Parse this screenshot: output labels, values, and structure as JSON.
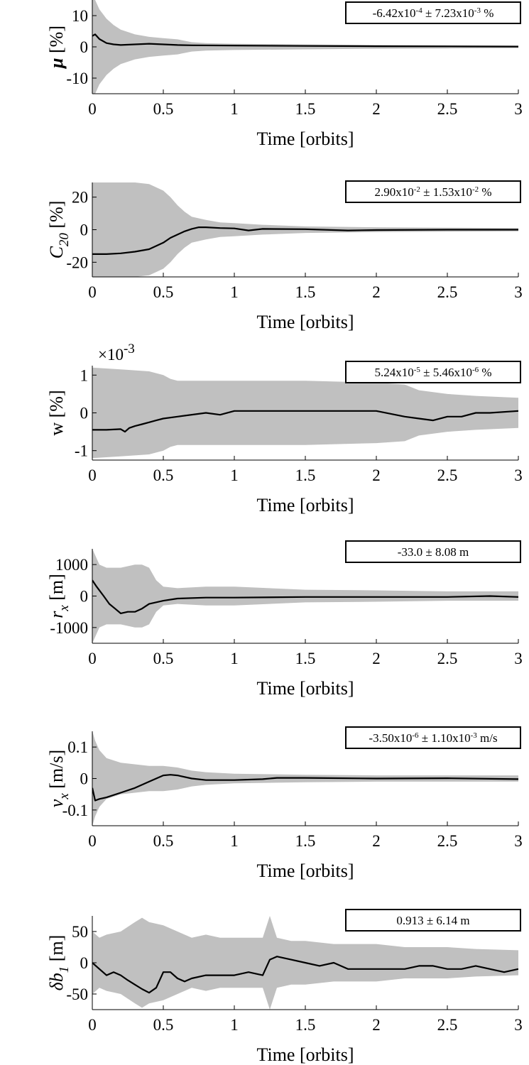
{
  "chart_data": [
    {
      "type": "area",
      "ylabel": "μ [%]",
      "xlabel": "Time [orbits]",
      "xlim": [
        0,
        3
      ],
      "ylim": [
        -15,
        15
      ],
      "xticks": [
        "0",
        "0.5",
        "1",
        "1.5",
        "2",
        "2.5",
        "3"
      ],
      "yticks": [
        {
          "v": -10,
          "label": "-10"
        },
        {
          "v": 0,
          "label": "0"
        },
        {
          "v": 10,
          "label": "10"
        }
      ],
      "estimate": {
        "mean": "-6.42x10",
        "mean_exp": "-4",
        "pm": "±",
        "sd": "7.23x10",
        "sd_exp": "-3",
        "unit": "%"
      },
      "band_color": "#c0c0c0",
      "line_color": "#000000",
      "series": [
        {
          "role": "mean",
          "x": [
            0,
            0.02,
            0.05,
            0.1,
            0.15,
            0.2,
            0.3,
            0.4,
            0.5,
            0.6,
            0.7,
            1.0,
            1.5,
            2.0,
            2.5,
            3.0
          ],
          "y": [
            3.5,
            4,
            2.5,
            1.2,
            0.8,
            0.6,
            0.8,
            1,
            0.8,
            0.6,
            0.5,
            0.4,
            0.3,
            0.2,
            0.15,
            0.1
          ]
        },
        {
          "role": "band",
          "x": [
            0,
            0.02,
            0.05,
            0.1,
            0.15,
            0.2,
            0.3,
            0.4,
            0.5,
            0.6,
            0.7,
            0.8,
            1.0,
            1.5,
            2.0,
            2.5,
            3.0
          ],
          "upper": [
            15,
            15,
            12,
            9,
            7,
            5.5,
            4,
            3.2,
            2.8,
            2.4,
            1.5,
            1.2,
            1,
            0.8,
            0.6,
            0.5,
            0.4
          ],
          "lower": [
            -15,
            -15,
            -12,
            -9,
            -7,
            -5.5,
            -4,
            -3.2,
            -2.8,
            -2.4,
            -1.5,
            -1.2,
            -1,
            -0.8,
            -0.6,
            -0.5,
            -0.4
          ]
        }
      ]
    },
    {
      "type": "area",
      "ylabel": "C",
      "ylabel_sub": "20",
      "ylabel_unit": " [%]",
      "xlabel": "Time [orbits]",
      "xlim": [
        0,
        3
      ],
      "ylim": [
        -29,
        29
      ],
      "xticks": [
        "0",
        "0.5",
        "1",
        "1.5",
        "2",
        "2.5",
        "3"
      ],
      "yticks": [
        {
          "v": -20,
          "label": "-20"
        },
        {
          "v": 0,
          "label": "0"
        },
        {
          "v": 20,
          "label": "20"
        }
      ],
      "estimate": {
        "mean": "2.90x10",
        "mean_exp": "-2",
        "pm": "±",
        "sd": "1.53x10",
        "sd_exp": "-2",
        "unit": "%"
      },
      "band_color": "#c0c0c0",
      "line_color": "#000000",
      "series": [
        {
          "role": "mean",
          "x": [
            0,
            0.1,
            0.2,
            0.3,
            0.4,
            0.45,
            0.5,
            0.55,
            0.6,
            0.65,
            0.7,
            0.75,
            0.8,
            0.9,
            1.0,
            1.1,
            1.2,
            1.5,
            1.8,
            2.0,
            2.5,
            3.0
          ],
          "y": [
            -15,
            -15,
            -14.5,
            -13.5,
            -12,
            -10,
            -8,
            -5,
            -3,
            -1,
            0.5,
            1.5,
            1.5,
            1,
            0.8,
            -0.5,
            0.5,
            0.3,
            -0.5,
            -0.2,
            0,
            0
          ]
        },
        {
          "role": "band",
          "x": [
            0,
            0.3,
            0.4,
            0.45,
            0.5,
            0.55,
            0.6,
            0.65,
            0.7,
            0.8,
            0.9,
            1.0,
            1.2,
            1.5,
            2.0,
            2.5,
            3.0
          ],
          "upper": [
            29,
            29,
            28,
            26,
            24,
            20,
            15,
            11,
            8,
            6,
            4.5,
            4,
            3,
            2,
            1.5,
            1.2,
            1
          ],
          "lower": [
            -29,
            -29,
            -28,
            -26,
            -24,
            -20,
            -15,
            -11,
            -8,
            -6,
            -4.5,
            -4,
            -3,
            -2,
            -1.5,
            -1.2,
            -1
          ]
        }
      ]
    },
    {
      "type": "area",
      "ylabel": "w [%]",
      "xlabel": "Time [orbits]",
      "axis_multiplier": "×10",
      "axis_multiplier_exp": "-3",
      "xlim": [
        0,
        3
      ],
      "ylim": [
        -1.25,
        1.25
      ],
      "xticks": [
        "0",
        "0.5",
        "1",
        "1.5",
        "2",
        "2.5",
        "3"
      ],
      "yticks": [
        {
          "v": -1,
          "label": "-1"
        },
        {
          "v": 0,
          "label": "0"
        },
        {
          "v": 1,
          "label": "1"
        }
      ],
      "estimate": {
        "mean": "5.24x10",
        "mean_exp": "-5",
        "pm": "±",
        "sd": "5.46x10",
        "sd_exp": "-6",
        "unit": "%"
      },
      "band_color": "#c0c0c0",
      "line_color": "#000000",
      "series": [
        {
          "role": "mean",
          "x": [
            0,
            0.1,
            0.2,
            0.23,
            0.26,
            0.3,
            0.35,
            0.4,
            0.45,
            0.5,
            0.6,
            0.8,
            0.9,
            1.0,
            1.3,
            1.5,
            1.7,
            2.0,
            2.2,
            2.3,
            2.4,
            2.5,
            2.6,
            2.7,
            2.8,
            3.0
          ],
          "y": [
            -0.45,
            -0.45,
            -0.43,
            -0.5,
            -0.4,
            -0.35,
            -0.3,
            -0.25,
            -0.2,
            -0.15,
            -0.1,
            0,
            -0.05,
            0.05,
            0.05,
            0.05,
            0.05,
            0.05,
            -0.1,
            -0.15,
            -0.2,
            -0.1,
            -0.1,
            0,
            0,
            0.05
          ]
        },
        {
          "role": "band",
          "x": [
            0,
            0.2,
            0.4,
            0.5,
            0.55,
            0.6,
            1.0,
            1.5,
            2.0,
            2.2,
            2.3,
            2.5,
            2.7,
            3.0
          ],
          "upper": [
            1.2,
            1.15,
            1.1,
            1.0,
            0.9,
            0.85,
            0.85,
            0.85,
            0.8,
            0.75,
            0.6,
            0.5,
            0.45,
            0.4
          ],
          "lower": [
            -1.2,
            -1.15,
            -1.1,
            -1.0,
            -0.9,
            -0.85,
            -0.85,
            -0.85,
            -0.8,
            -0.75,
            -0.6,
            -0.5,
            -0.45,
            -0.4
          ]
        }
      ]
    },
    {
      "type": "area",
      "ylabel": "r",
      "ylabel_sub": "x",
      "ylabel_unit": " [m]",
      "xlabel": "Time [orbits]",
      "xlim": [
        0,
        3
      ],
      "ylim": [
        -1500,
        1500
      ],
      "xticks": [
        "0",
        "0.5",
        "1",
        "1.5",
        "2",
        "2.5",
        "3"
      ],
      "yticks": [
        {
          "v": -1000,
          "label": "-1000"
        },
        {
          "v": 0,
          "label": "0"
        },
        {
          "v": 1000,
          "label": "1000"
        }
      ],
      "estimate": {
        "mean": "-33.0",
        "mean_exp": "",
        "pm": "±",
        "sd": "8.08",
        "sd_exp": "",
        "unit": "m"
      },
      "band_color": "#c0c0c0",
      "line_color": "#000000",
      "series": [
        {
          "role": "mean",
          "x": [
            0,
            0.03,
            0.08,
            0.12,
            0.16,
            0.2,
            0.25,
            0.3,
            0.35,
            0.4,
            0.5,
            0.6,
            0.8,
            1.0,
            1.5,
            2.0,
            2.5,
            2.8,
            3.0
          ],
          "y": [
            500,
            300,
            0,
            -250,
            -400,
            -550,
            -500,
            -500,
            -400,
            -250,
            -150,
            -80,
            -50,
            -50,
            -30,
            -30,
            -30,
            0,
            -30
          ]
        },
        {
          "role": "band",
          "x": [
            0,
            0.05,
            0.1,
            0.2,
            0.3,
            0.35,
            0.4,
            0.45,
            0.5,
            0.6,
            0.8,
            1.0,
            1.5,
            2.0,
            2.5,
            3.0
          ],
          "upper": [
            1500,
            1000,
            900,
            900,
            1000,
            1000,
            900,
            500,
            300,
            250,
            300,
            300,
            200,
            180,
            150,
            150
          ],
          "lower": [
            -1500,
            -1000,
            -900,
            -900,
            -1000,
            -1000,
            -900,
            -500,
            -300,
            -250,
            -300,
            -300,
            -200,
            -180,
            -150,
            -150
          ]
        }
      ]
    },
    {
      "type": "area",
      "ylabel": "v",
      "ylabel_sub": "x",
      "ylabel_unit": " [m/s]",
      "xlabel": "Time [orbits]",
      "xlim": [
        0,
        3
      ],
      "ylim": [
        -0.15,
        0.15
      ],
      "xticks": [
        "0",
        "0.5",
        "1",
        "1.5",
        "2",
        "2.5",
        "3"
      ],
      "yticks": [
        {
          "v": -0.1,
          "label": "-0.1"
        },
        {
          "v": 0,
          "label": "0"
        },
        {
          "v": 0.1,
          "label": "0.1"
        }
      ],
      "estimate": {
        "mean": "-3.50x10",
        "mean_exp": "-6",
        "pm": "±",
        "sd": "1.10x10",
        "sd_exp": "-3",
        "unit": "m/s"
      },
      "band_color": "#c0c0c0",
      "line_color": "#000000",
      "series": [
        {
          "role": "mean",
          "x": [
            0,
            0.02,
            0.05,
            0.1,
            0.2,
            0.3,
            0.4,
            0.5,
            0.55,
            0.6,
            0.7,
            0.8,
            1.0,
            1.2,
            1.3,
            1.5,
            2.0,
            2.5,
            3.0
          ],
          "y": [
            -0.03,
            -0.07,
            -0.065,
            -0.06,
            -0.045,
            -0.03,
            -0.01,
            0.01,
            0.012,
            0.01,
            0,
            -0.005,
            -0.005,
            -0.002,
            0.002,
            0.002,
            0,
            0.001,
            -0.002
          ]
        },
        {
          "role": "band",
          "x": [
            0,
            0.02,
            0.05,
            0.1,
            0.2,
            0.3,
            0.4,
            0.5,
            0.6,
            0.7,
            0.8,
            1.0,
            1.5,
            2.0,
            2.5,
            3.0
          ],
          "upper": [
            0.15,
            0.12,
            0.09,
            0.065,
            0.05,
            0.045,
            0.04,
            0.04,
            0.035,
            0.025,
            0.02,
            0.015,
            0.012,
            0.01,
            0.01,
            0.01
          ],
          "lower": [
            -0.15,
            -0.12,
            -0.09,
            -0.065,
            -0.05,
            -0.045,
            -0.04,
            -0.04,
            -0.035,
            -0.025,
            -0.02,
            -0.015,
            -0.012,
            -0.01,
            -0.01,
            -0.01
          ]
        }
      ]
    },
    {
      "type": "area",
      "ylabel": "δb",
      "ylabel_sub": "1",
      "ylabel_unit": " [m]",
      "xlabel": "Time [orbits]",
      "xlim": [
        0,
        3
      ],
      "ylim": [
        -75,
        75
      ],
      "xticks": [
        "0",
        "0.5",
        "1",
        "1.5",
        "2",
        "2.5",
        "3"
      ],
      "yticks": [
        {
          "v": -50,
          "label": "-50"
        },
        {
          "v": 0,
          "label": "0"
        },
        {
          "v": 50,
          "label": "50"
        }
      ],
      "estimate": {
        "mean": "0.913",
        "mean_exp": "",
        "pm": "±",
        "sd": "6.14",
        "sd_exp": "",
        "unit": "m"
      },
      "band_color": "#c0c0c0",
      "line_color": "#000000",
      "series": [
        {
          "role": "mean",
          "x": [
            0,
            0.05,
            0.1,
            0.15,
            0.2,
            0.25,
            0.3,
            0.35,
            0.4,
            0.45,
            0.5,
            0.55,
            0.6,
            0.65,
            0.7,
            0.8,
            0.9,
            1.0,
            1.1,
            1.2,
            1.25,
            1.3,
            1.4,
            1.5,
            1.6,
            1.7,
            1.8,
            2.0,
            2.2,
            2.3,
            2.4,
            2.5,
            2.6,
            2.7,
            2.8,
            2.9,
            3.0
          ],
          "y": [
            0,
            -10,
            -20,
            -15,
            -20,
            -28,
            -35,
            -42,
            -48,
            -40,
            -15,
            -15,
            -25,
            -30,
            -25,
            -20,
            -20,
            -20,
            -15,
            -20,
            5,
            10,
            5,
            0,
            -5,
            0,
            -10,
            -10,
            -10,
            -5,
            -5,
            -10,
            -10,
            -5,
            -10,
            -15,
            -10
          ]
        },
        {
          "role": "band",
          "x": [
            0,
            0.05,
            0.1,
            0.2,
            0.3,
            0.35,
            0.4,
            0.5,
            0.6,
            0.7,
            0.8,
            0.9,
            1.0,
            1.1,
            1.2,
            1.25,
            1.3,
            1.4,
            1.5,
            1.7,
            2.0,
            2.2,
            2.5,
            2.7,
            3.0
          ],
          "upper": [
            50,
            40,
            45,
            50,
            65,
            72,
            65,
            60,
            50,
            40,
            45,
            40,
            40,
            40,
            40,
            75,
            40,
            35,
            35,
            30,
            30,
            25,
            25,
            22,
            20
          ],
          "lower": [
            -50,
            -40,
            -45,
            -50,
            -65,
            -72,
            -65,
            -60,
            -50,
            -40,
            -45,
            -40,
            -40,
            -40,
            -40,
            -75,
            -40,
            -35,
            -35,
            -30,
            -30,
            -25,
            -25,
            -22,
            -20
          ]
        }
      ]
    }
  ]
}
